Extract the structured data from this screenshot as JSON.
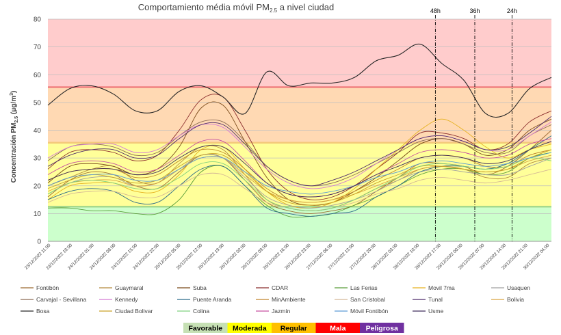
{
  "chart_data": {
    "type": "line",
    "title_main": "Comportamiento média móvil PM",
    "title_sub": "2.5",
    "title_tail": "a nivel ciudad",
    "ylabel": "Concentración PM2.5 (μg/m³)",
    "ylabel_main": "Concentración PM",
    "ylabel_sub": "2.5",
    "ylabel_tail": " (μg/m",
    "ylabel_sup": "3",
    "ylabel_end": ")",
    "ylim": [
      0,
      80
    ],
    "yticks": [
      "0",
      "10",
      "20",
      "30",
      "40",
      "50",
      "60",
      "70",
      "80"
    ],
    "grid": true,
    "legend_position": "bottom",
    "x_tick_labels": [
      "23/12/2022 11:00",
      "23/12/2022 18:00",
      "24/12/2022 01:00",
      "24/12/2022 08:00",
      "24/12/2022 15:00",
      "24/12/2022 22:00",
      "25/12/2022 05:00",
      "25/12/2022 12:00",
      "25/12/2022 19:00",
      "26/12/2022 02:00",
      "26/12/2022 09:00",
      "26/12/2022 16:00",
      "26/12/2022 23:00",
      "27/12/2022 06:00",
      "27/12/2022 13:00",
      "27/12/2022 20:00",
      "28/12/2022 03:00",
      "28/12/2022 10:00",
      "28/12/2022 17:00",
      "29/12/2022 00:00",
      "29/12/2022 07:00",
      "29/12/2022 14:00",
      "29/12/2022 21:00",
      "30/12/2022 04:00"
    ],
    "bands": [
      {
        "name": "Favorable",
        "from": 0,
        "to": 12.5,
        "color": "#ccffcc"
      },
      {
        "name": "Moderada",
        "from": 12.5,
        "to": 35.5,
        "color": "#ffff99"
      },
      {
        "name": "Regular",
        "from": 35.5,
        "to": 55.5,
        "color": "#ffd9b3"
      },
      {
        "name": "Mala",
        "from": 55.5,
        "to": 80,
        "color": "#ffcccc"
      }
    ],
    "category_legend": [
      {
        "name": "Favorable",
        "color": "#c6e0b4"
      },
      {
        "name": "Moderada",
        "color": "#ffff00"
      },
      {
        "name": "Regular",
        "color": "#ffc000"
      },
      {
        "name": "Mala",
        "color": "#ff0000"
      },
      {
        "name": "Peligrosa",
        "color": "#7030a0"
      }
    ],
    "markers": [
      {
        "label": "48h",
        "x": 17.7
      },
      {
        "label": "36h",
        "x": 19.5
      },
      {
        "label": "24h",
        "x": 21.2
      }
    ],
    "x_count": 24,
    "series": [
      {
        "name": "Fontibón",
        "color": "#9c6b30",
        "values": [
          16,
          22,
          25,
          24,
          20,
          19,
          25,
          31,
          30,
          22,
          14,
          11,
          10,
          11,
          13,
          18,
          23,
          28,
          28,
          27,
          24,
          27,
          33,
          40
        ]
      },
      {
        "name": "Guaymaral",
        "color": "#b38a3e",
        "values": [
          20,
          23,
          26,
          27,
          22,
          21,
          28,
          34,
          33,
          24,
          15,
          12,
          11,
          12,
          15,
          19,
          22,
          26,
          27,
          26,
          23,
          23,
          28,
          30
        ]
      },
      {
        "name": "Suba",
        "color": "#7a4a1a",
        "values": [
          21,
          27,
          28,
          27,
          24,
          26,
          34,
          48,
          49,
          36,
          23,
          15,
          13,
          14,
          18,
          23,
          29,
          35,
          37,
          35,
          31,
          33,
          40,
          44
        ]
      },
      {
        "name": "CDAR",
        "color": "#8b2d2d",
        "values": [
          26,
          32,
          33,
          32,
          29,
          31,
          40,
          51,
          52,
          40,
          26,
          18,
          15,
          16,
          20,
          26,
          32,
          39,
          39,
          37,
          33,
          35,
          43,
          47
        ]
      },
      {
        "name": "Las Ferias",
        "color": "#5a9e3a",
        "values": [
          12,
          12,
          11,
          11,
          10,
          10,
          15,
          25,
          27,
          20,
          13,
          9,
          9,
          10,
          13,
          16,
          20,
          24,
          26,
          26,
          24,
          25,
          30,
          32
        ]
      },
      {
        "name": "Movil 7ma",
        "color": "#e6b220",
        "values": [
          15,
          20,
          21,
          21,
          18,
          18,
          24,
          33,
          34,
          26,
          18,
          13,
          12,
          14,
          19,
          26,
          33,
          40,
          44,
          40,
          34,
          30,
          33,
          35
        ]
      },
      {
        "name": "Usaquen",
        "color": "#a0a0a0",
        "values": [
          17,
          21,
          23,
          23,
          20,
          21,
          26,
          31,
          30,
          23,
          16,
          13,
          12,
          13,
          15,
          18,
          22,
          25,
          26,
          25,
          24,
          24,
          27,
          30
        ]
      },
      {
        "name": "Carvajal - Sevillana",
        "color": "#8c6b55",
        "values": [
          29,
          34,
          35,
          34,
          31,
          32,
          38,
          43,
          43,
          36,
          27,
          22,
          20,
          21,
          24,
          28,
          32,
          36,
          37,
          35,
          32,
          32,
          38,
          42
        ]
      },
      {
        "name": "Kennedy",
        "color": "#d47ad4",
        "values": [
          30,
          34,
          35,
          35,
          32,
          33,
          38,
          42,
          41,
          34,
          26,
          21,
          19,
          20,
          23,
          28,
          33,
          37,
          38,
          36,
          33,
          33,
          38,
          43
        ]
      },
      {
        "name": "Puente Aranda",
        "color": "#2a6a8a",
        "values": [
          15,
          18,
          19,
          18,
          14,
          14,
          20,
          26,
          27,
          20,
          12,
          10,
          9,
          10,
          11,
          16,
          20,
          25,
          27,
          27,
          26,
          28,
          33,
          38
        ]
      },
      {
        "name": "MinAmbiente",
        "color": "#c0852a",
        "values": [
          22,
          25,
          26,
          26,
          23,
          24,
          29,
          33,
          32,
          26,
          19,
          15,
          14,
          15,
          18,
          22,
          26,
          30,
          31,
          30,
          27,
          27,
          31,
          33
        ]
      },
      {
        "name": "San Cristobal",
        "color": "#d4b896",
        "values": [
          14,
          17,
          18,
          18,
          16,
          16,
          20,
          24,
          24,
          19,
          14,
          12,
          11,
          12,
          14,
          17,
          19,
          22,
          23,
          22,
          21,
          22,
          24,
          26
        ]
      },
      {
        "name": "Tunal",
        "color": "#4d2b6b",
        "values": [
          27,
          31,
          33,
          33,
          30,
          31,
          37,
          42,
          42,
          35,
          27,
          22,
          20,
          22,
          25,
          29,
          33,
          37,
          38,
          36,
          33,
          34,
          39,
          45
        ]
      },
      {
        "name": "Bolivia",
        "color": "#d9a441",
        "values": [
          18,
          21,
          22,
          22,
          20,
          21,
          26,
          30,
          30,
          24,
          18,
          15,
          14,
          15,
          17,
          20,
          23,
          26,
          27,
          26,
          25,
          26,
          29,
          31
        ]
      },
      {
        "name": "Bosa",
        "color": "#262626",
        "values": [
          49,
          55,
          56,
          53,
          47,
          47,
          54,
          56,
          52,
          46,
          61,
          56,
          57,
          57,
          59,
          65,
          67,
          71,
          64,
          58,
          46,
          46,
          55,
          59
        ]
      },
      {
        "name": "Ciudad Bolivar",
        "color": "#c9a227",
        "values": [
          19,
          22,
          24,
          23,
          21,
          22,
          27,
          31,
          31,
          25,
          18,
          14,
          13,
          14,
          17,
          21,
          24,
          27,
          27,
          26,
          25,
          26,
          30,
          33
        ]
      },
      {
        "name": "Colina",
        "color": "#7fd17f",
        "values": [
          17,
          21,
          22,
          21,
          19,
          19,
          23,
          28,
          28,
          22,
          15,
          12,
          11,
          12,
          15,
          19,
          23,
          27,
          28,
          27,
          26,
          27,
          30,
          29
        ]
      },
      {
        "name": "Jazmín",
        "color": "#c64fa0",
        "values": [
          24,
          28,
          29,
          28,
          25,
          26,
          31,
          36,
          36,
          29,
          21,
          17,
          16,
          17,
          20,
          24,
          28,
          32,
          33,
          32,
          30,
          31,
          35,
          37
        ]
      },
      {
        "name": "Móvil Fontibón",
        "color": "#5b9bd5",
        "values": [
          20,
          23,
          24,
          24,
          22,
          22,
          26,
          30,
          30,
          25,
          20,
          18,
          17,
          18,
          20,
          23,
          25,
          28,
          29,
          28,
          27,
          28,
          30,
          32
        ]
      },
      {
        "name": "Usme",
        "color": "#3d2a5a",
        "values": [
          22,
          25,
          26,
          26,
          24,
          25,
          30,
          34,
          34,
          28,
          21,
          17,
          16,
          17,
          20,
          24,
          27,
          30,
          31,
          30,
          28,
          29,
          33,
          36
        ]
      }
    ]
  }
}
